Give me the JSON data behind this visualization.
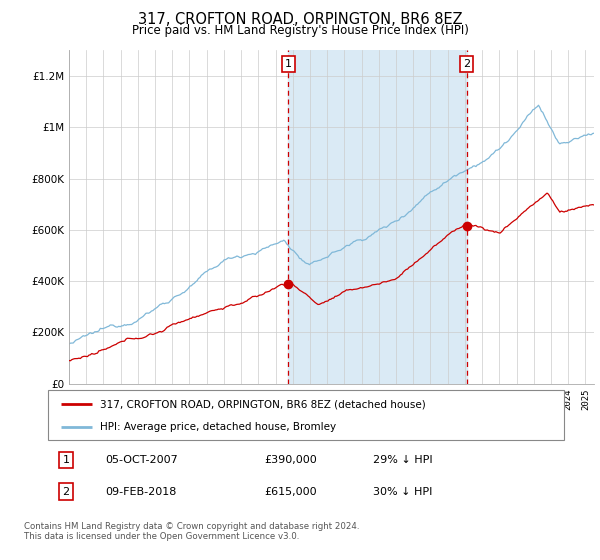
{
  "title": "317, CROFTON ROAD, ORPINGTON, BR6 8EZ",
  "subtitle": "Price paid vs. HM Land Registry's House Price Index (HPI)",
  "title_fontsize": 10.5,
  "subtitle_fontsize": 8.5,
  "bg_color": "#ffffff",
  "plot_bg_color": "#ffffff",
  "grid_color": "#cccccc",
  "hpi_line_color": "#80b8d8",
  "price_line_color": "#cc0000",
  "marker_color": "#cc0000",
  "shade_color": "#daeaf5",
  "vline_color": "#cc0000",
  "ylim": [
    0,
    1300000
  ],
  "yticks": [
    0,
    200000,
    400000,
    600000,
    800000,
    1000000,
    1200000
  ],
  "ytick_labels": [
    "£0",
    "£200K",
    "£400K",
    "£600K",
    "£800K",
    "£1M",
    "£1.2M"
  ],
  "legend_entry1": "317, CROFTON ROAD, ORPINGTON, BR6 8EZ (detached house)",
  "legend_entry2": "HPI: Average price, detached house, Bromley",
  "marker1_year": 2007.75,
  "marker1_value": 390000,
  "marker2_year": 2018.1,
  "marker2_value": 615000,
  "footnote": "Contains HM Land Registry data © Crown copyright and database right 2024.\nThis data is licensed under the Open Government Licence v3.0.",
  "xmin": 1995.0,
  "xmax": 2025.5
}
